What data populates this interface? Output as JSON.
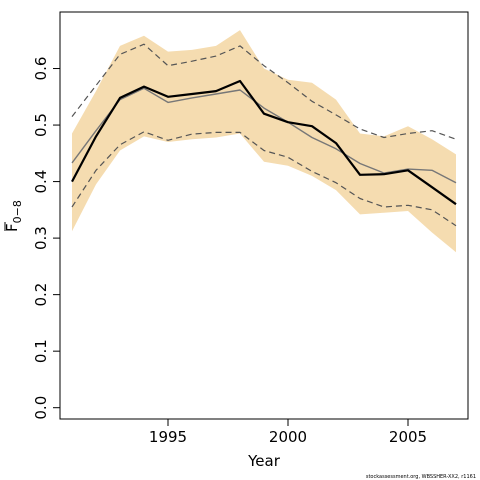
{
  "chart_data": {
    "type": "line",
    "title": "",
    "xlabel": "Year",
    "ylabel_main": "F",
    "ylabel_sub": "0−8",
    "xlim": [
      1990.5,
      2007.5
    ],
    "ylim": [
      -0.02,
      0.7
    ],
    "x_ticks": [
      1995,
      2000,
      2005
    ],
    "x_tick_labels": [
      "1995",
      "2000",
      "2005"
    ],
    "y_ticks": [
      0.0,
      0.1,
      0.2,
      0.3,
      0.4,
      0.5,
      0.6
    ],
    "y_tick_labels": [
      "0.0",
      "0.1",
      "0.2",
      "0.3",
      "0.4",
      "0.5",
      "0.6"
    ],
    "grid": false,
    "x": [
      1991,
      1992,
      1993,
      1994,
      1995,
      1996,
      1997,
      1998,
      1999,
      2000,
      2001,
      2002,
      2003,
      2004,
      2005,
      2006,
      2007
    ],
    "band": {
      "color": "#f5dcb0",
      "upper": [
        0.485,
        0.56,
        0.64,
        0.658,
        0.63,
        0.633,
        0.64,
        0.668,
        0.6,
        0.58,
        0.575,
        0.545,
        0.485,
        0.48,
        0.498,
        0.475,
        0.448
      ],
      "lower": [
        0.312,
        0.395,
        0.455,
        0.48,
        0.47,
        0.475,
        0.478,
        0.485,
        0.435,
        0.428,
        0.41,
        0.385,
        0.342,
        0.345,
        0.348,
        0.31,
        0.275
      ]
    },
    "series": [
      {
        "values": [
          0.4,
          0.48,
          0.548,
          0.568,
          0.55,
          0.555,
          0.56,
          0.578,
          0.52,
          0.505,
          0.498,
          0.468,
          0.412,
          0.413,
          0.42,
          0.39,
          0.36
        ],
        "color": "#000000",
        "style": "solid",
        "width": 2.2
      },
      {
        "values": [
          0.433,
          0.49,
          0.545,
          0.565,
          0.54,
          0.548,
          0.555,
          0.562,
          0.53,
          0.505,
          0.478,
          0.458,
          0.432,
          0.415,
          0.422,
          0.42,
          0.398
        ],
        "color": "#777777",
        "style": "solid",
        "width": 1.4
      },
      {
        "values": [
          0.515,
          0.57,
          0.625,
          0.643,
          0.605,
          0.613,
          0.622,
          0.64,
          0.605,
          0.575,
          0.542,
          0.518,
          0.493,
          0.478,
          0.485,
          0.49,
          0.475
        ],
        "color": "#555555",
        "style": "dashed",
        "width": 1.2
      },
      {
        "values": [
          0.355,
          0.42,
          0.465,
          0.488,
          0.473,
          0.484,
          0.487,
          0.487,
          0.455,
          0.443,
          0.418,
          0.398,
          0.37,
          0.355,
          0.358,
          0.35,
          0.322
        ],
        "color": "#555555",
        "style": "dashed",
        "width": 1.2
      }
    ],
    "footnote": "stockassessment.org, WBSSHER-XX2, r1161"
  }
}
